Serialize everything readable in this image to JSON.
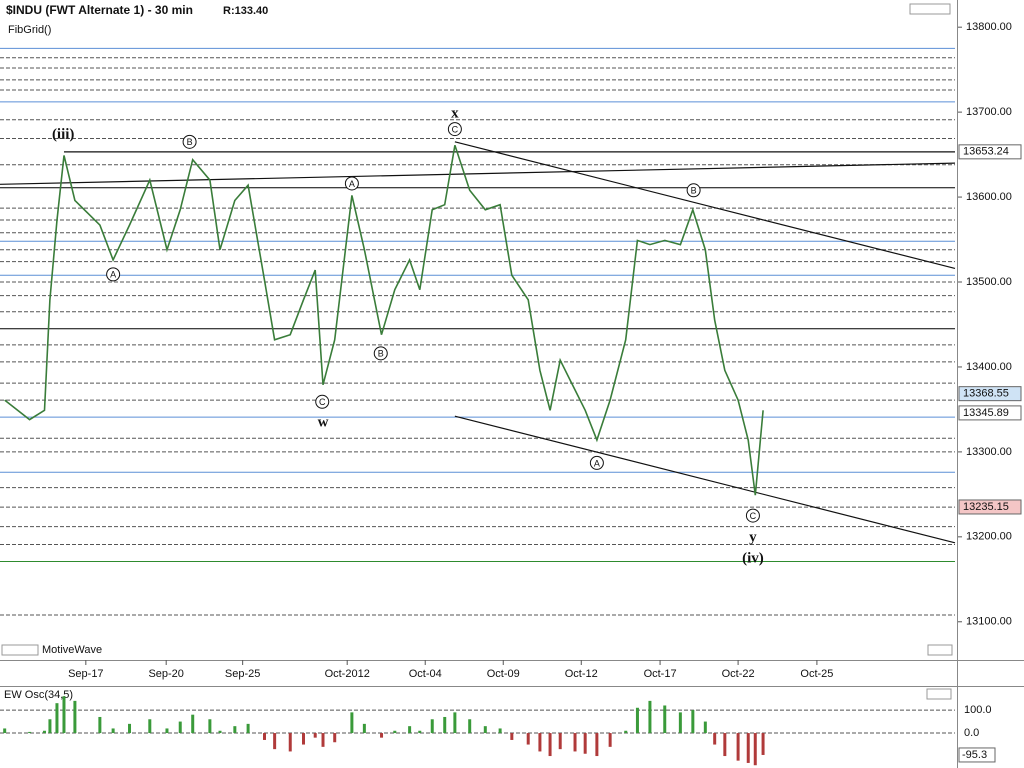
{
  "chart_data": {
    "type": "line",
    "title": "$INDU (FWT Alternate 1) - 30 min",
    "subtitle": "R:133.40",
    "study_label": "FibGrid()",
    "brand": "MotiveWave",
    "xlim": [
      -11,
      111.4
    ],
    "ylim": [
      13055,
      13832
    ],
    "xticks": [
      {
        "value": 0,
        "label": "Sep-17"
      },
      {
        "value": 10.3,
        "label": "Sep-20"
      },
      {
        "value": 20.1,
        "label": "Sep-25"
      },
      {
        "value": 33.5,
        "label": "Oct-2012"
      },
      {
        "value": 43.5,
        "label": "Oct-04"
      },
      {
        "value": 53.5,
        "label": "Oct-09"
      },
      {
        "value": 63.5,
        "label": "Oct-12"
      },
      {
        "value": 73.6,
        "label": "Oct-17"
      },
      {
        "value": 83.6,
        "label": "Oct-22"
      },
      {
        "value": 93.7,
        "label": "Oct-25"
      }
    ],
    "yticks": [
      {
        "value": 13800,
        "label": "13800.00"
      },
      {
        "value": 13700,
        "label": "13700.00"
      },
      {
        "value": 13600,
        "label": "13600.00"
      },
      {
        "value": 13500,
        "label": "13500.00"
      },
      {
        "value": 13400,
        "label": "13400.00"
      },
      {
        "value": 13300,
        "label": "13300.00"
      },
      {
        "value": 13200,
        "label": "13200.00"
      },
      {
        "value": 13100,
        "label": "13100.00"
      }
    ],
    "series": [
      {
        "name": "$INDU",
        "color": "#3a7d3a",
        "x": [
          -10.4,
          -7.2,
          -5.3,
          -4.6,
          -3.7,
          -2.8,
          -1.4,
          1.8,
          3.5,
          5.6,
          8.2,
          10.4,
          12.1,
          13.7,
          15.9,
          17.2,
          19.1,
          20.8,
          22.9,
          24.2,
          26.2,
          27.9,
          29.4,
          30.4,
          31.9,
          34.1,
          35.7,
          37.9,
          39.6,
          41.5,
          42.8,
          44.4,
          46.0,
          47.3,
          49.2,
          51.2,
          53.1,
          54.6,
          56.7,
          58.2,
          59.5,
          60.8,
          62.7,
          64.0,
          65.5,
          67.2,
          69.2,
          70.7,
          72.3,
          74.2,
          76.2,
          77.8,
          79.4,
          80.6,
          81.9,
          83.6,
          84.9,
          85.8,
          86.8
        ],
        "values": [
          13361,
          13338,
          13349,
          13479,
          13573,
          13649,
          13596,
          13567,
          13526,
          13567,
          13620,
          13538,
          13585,
          13644,
          13620,
          13538,
          13596,
          13614,
          13502,
          13432,
          13438,
          13479,
          13514,
          13379,
          13432,
          13602,
          13538,
          13438,
          13491,
          13526,
          13491,
          13585,
          13591,
          13661,
          13608,
          13585,
          13591,
          13508,
          13479,
          13396,
          13349,
          13408,
          13373,
          13349,
          13314,
          13361,
          13432,
          13549,
          13544,
          13549,
          13544,
          13585,
          13538,
          13455,
          13396,
          13361,
          13314,
          13249,
          13349
        ]
      }
    ],
    "levels": [
      {
        "value": 13775,
        "color": "#5b8fd6",
        "style": "solid"
      },
      {
        "value": 13764,
        "color": "#555",
        "style": "dashed"
      },
      {
        "value": 13752,
        "color": "#555",
        "style": "dashed"
      },
      {
        "value": 13738,
        "color": "#555",
        "style": "dashed"
      },
      {
        "value": 13726,
        "color": "#555",
        "style": "dashed"
      },
      {
        "value": 13712,
        "color": "#5b8fd6",
        "style": "solid"
      },
      {
        "value": 13691,
        "color": "#555",
        "style": "dashed"
      },
      {
        "value": 13669,
        "color": "#555",
        "style": "dashed"
      },
      {
        "value": 13638,
        "color": "#555",
        "style": "dashed"
      },
      {
        "value": 13611,
        "color": "#000",
        "style": "solid"
      },
      {
        "value": 13587,
        "color": "#555",
        "style": "dashed"
      },
      {
        "value": 13573,
        "color": "#555",
        "style": "dashed"
      },
      {
        "value": 13558,
        "color": "#555",
        "style": "dashed"
      },
      {
        "value": 13548,
        "color": "#5b8fd6",
        "style": "solid"
      },
      {
        "value": 13538,
        "color": "#555",
        "style": "dashed"
      },
      {
        "value": 13524,
        "color": "#555",
        "style": "dashed"
      },
      {
        "value": 13508,
        "color": "#5b8fd6",
        "style": "solid"
      },
      {
        "value": 13500,
        "color": "#555",
        "style": "dashed"
      },
      {
        "value": 13484,
        "color": "#555",
        "style": "dashed"
      },
      {
        "value": 13465,
        "color": "#555",
        "style": "dashed"
      },
      {
        "value": 13445,
        "color": "#000",
        "style": "solid"
      },
      {
        "value": 13426,
        "color": "#555",
        "style": "dashed"
      },
      {
        "value": 13406,
        "color": "#555",
        "style": "dashed"
      },
      {
        "value": 13381,
        "color": "#555",
        "style": "dashed"
      },
      {
        "value": 13361,
        "color": "#555",
        "style": "dashed"
      },
      {
        "value": 13341,
        "color": "#5b8fd6",
        "style": "solid"
      },
      {
        "value": 13316,
        "color": "#555",
        "style": "dashed"
      },
      {
        "value": 13300,
        "color": "#555",
        "style": "dashed"
      },
      {
        "value": 13276,
        "color": "#5b8fd6",
        "style": "solid"
      },
      {
        "value": 13258,
        "color": "#555",
        "style": "dashed"
      },
      {
        "value": 13235,
        "color": "#555",
        "style": "dashed"
      },
      {
        "value": 13212,
        "color": "#555",
        "style": "dashed"
      },
      {
        "value": 13191,
        "color": "#555",
        "style": "dashed"
      },
      {
        "value": 13171,
        "color": "#2e8b2e",
        "style": "solid"
      },
      {
        "value": 13108,
        "color": "#555",
        "style": "dashed"
      }
    ],
    "trend_lines": [
      {
        "x": [
          -11,
          111.4
        ],
        "y": [
          13615,
          13640
        ]
      },
      {
        "x": [
          47.3,
          111.4
        ],
        "y": [
          13665,
          13516
        ]
      },
      {
        "x": [
          47.3,
          111.4
        ],
        "y": [
          13342,
          13193
        ]
      },
      {
        "x": [
          -2.8,
          111.4
        ],
        "y": [
          13653.24,
          13653.24
        ]
      }
    ],
    "price_tags": [
      {
        "value": 13653.24,
        "label": "13653.24",
        "color": "#ffffff"
      },
      {
        "value": 13368.55,
        "label": "13368.55",
        "color": "#cfe3f5"
      },
      {
        "value": 13345.89,
        "label": "13345.89",
        "color": "#ffffff"
      },
      {
        "value": 13235.15,
        "label": "13235.15",
        "color": "#f4c6c6"
      }
    ],
    "wave_labels": [
      {
        "text": "A",
        "x": 3.5,
        "y": 13509,
        "circled": true
      },
      {
        "text": "B",
        "x": 13.3,
        "y": 13665,
        "circled": true
      },
      {
        "text": "C",
        "x": 30.3,
        "y": 13359,
        "circled": true
      },
      {
        "text": "A",
        "x": 34.1,
        "y": 13616,
        "circled": true
      },
      {
        "text": "B",
        "x": 37.8,
        "y": 13416,
        "circled": true
      },
      {
        "text": "C",
        "x": 47.3,
        "y": 13680,
        "circled": true
      },
      {
        "text": "B",
        "x": 77.9,
        "y": 13608,
        "circled": true
      },
      {
        "text": "A",
        "x": 65.5,
        "y": 13287,
        "circled": true
      },
      {
        "text": "C",
        "x": 85.5,
        "y": 13225,
        "circled": true
      },
      {
        "text": "(iii)",
        "x": -2.9,
        "y": 13674,
        "circled": false
      },
      {
        "text": "w",
        "x": 30.4,
        "y": 13335,
        "circled": false
      },
      {
        "text": "x",
        "x": 47.3,
        "y": 13699,
        "circled": false
      },
      {
        "text": "y",
        "x": 85.5,
        "y": 13200,
        "circled": false
      },
      {
        "text": "(iv)",
        "x": 85.5,
        "y": 13175,
        "circled": false
      }
    ],
    "oscillator": {
      "title": "EW Osc(34,5)",
      "ylim": [
        -152,
        196
      ],
      "yticks": [
        {
          "value": 100,
          "label": "100.0"
        },
        {
          "value": 0,
          "label": "0.0"
        }
      ],
      "current": {
        "value": -95.3,
        "label": "-95.3"
      },
      "colors": [
        "#3a9a3a",
        "#b03a3a"
      ],
      "values": [
        20,
        5,
        10,
        60,
        130,
        160,
        140,
        70,
        20,
        40,
        60,
        20,
        50,
        80,
        60,
        10,
        30,
        40,
        -30,
        -70,
        -80,
        -50,
        -20,
        -60,
        -40,
        90,
        40,
        -20,
        10,
        30,
        10,
        60,
        70,
        90,
        60,
        30,
        20,
        -30,
        -50,
        -80,
        -100,
        -70,
        -80,
        -90,
        -100,
        -60,
        10,
        110,
        140,
        120,
        90,
        100,
        50,
        -50,
        -100,
        -120,
        -130,
        -140,
        -95.3
      ]
    }
  }
}
